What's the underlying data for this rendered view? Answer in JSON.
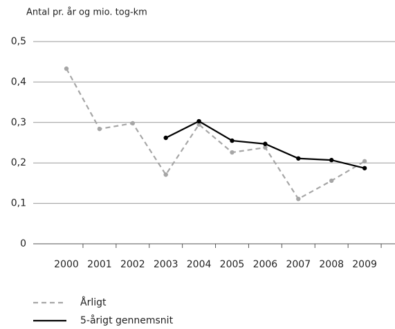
{
  "chart_data": {
    "type": "line",
    "title": "Antal pr. år og mio. tog-km",
    "categories": [
      "2000",
      "2001",
      "2002",
      "2003",
      "2004",
      "2005",
      "2006",
      "2007",
      "2008",
      "2009"
    ],
    "series": [
      {
        "name": "Årligt",
        "color": "#a6a6a6",
        "dash": true,
        "values": [
          0.433,
          0.284,
          0.298,
          0.171,
          0.295,
          0.226,
          0.238,
          0.111,
          0.156,
          0.204
        ]
      },
      {
        "name": "5-årigt gennemsnit",
        "color": "#000000",
        "dash": false,
        "values": [
          null,
          null,
          null,
          0.262,
          0.303,
          0.255,
          0.247,
          0.211,
          0.207,
          0.187
        ]
      }
    ],
    "ylim": [
      0,
      0.5
    ],
    "yticks": [
      0,
      {
        "value": 0.1,
        "label": "0,1"
      },
      {
        "value": 0.2,
        "label": "0,2"
      },
      {
        "value": 0.3,
        "label": "0,3"
      },
      {
        "value": 0.4,
        "label": "0,4"
      },
      {
        "value": 0.5,
        "label": "0,5"
      }
    ],
    "grid": true
  }
}
